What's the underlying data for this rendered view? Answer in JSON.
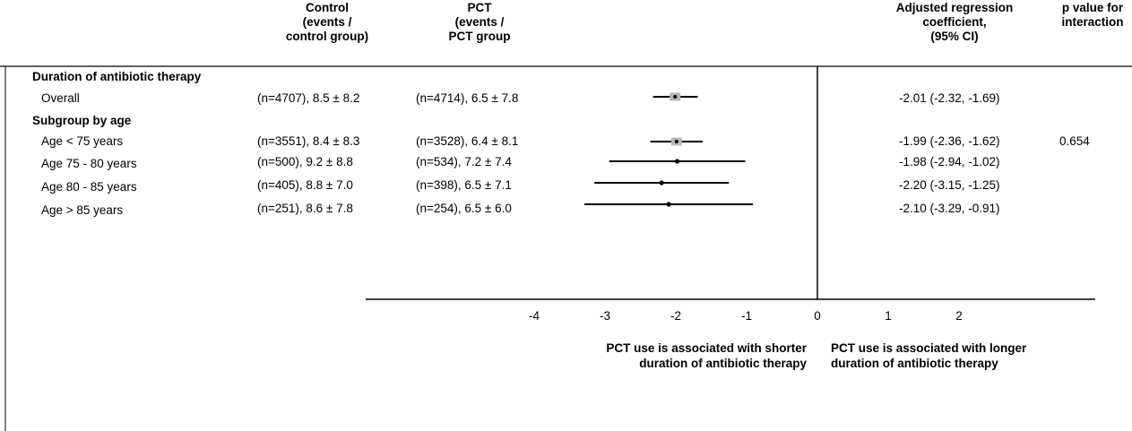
{
  "headers": {
    "control": [
      "Control",
      "(events /",
      "control group)"
    ],
    "pct": [
      "PCT",
      "(events /",
      "PCT group"
    ],
    "coef": [
      "Adjusted regression",
      "coefficient,",
      "(95% CI)"
    ],
    "pvalue": [
      "p value for",
      "interaction"
    ]
  },
  "sections": [
    "Duration of antibiotic therapy",
    "Subgroup by age"
  ],
  "rows": [
    {
      "label": "Overall",
      "control": "(n=4707), 8.5 ± 8.2",
      "pct": "(n=4714), 6.5 ± 7.8",
      "ci_text": "-2.01 (-2.32, -1.69)",
      "p": ""
    },
    {
      "label": "Age < 75 years",
      "control": "(n=3551), 8.4 ± 8.3",
      "pct": "(n=3528), 6.4 ± 8.1",
      "ci_text": "-1.99 (-2.36, -1.62)",
      "p": "0.654"
    },
    {
      "label": "Age 75 - 80 years",
      "control": "(n=500), 9.2 ± 8.8",
      "pct": "(n=534), 7.2 ± 7.4",
      "ci_text": "-1.98 (-2.94, -1.02)",
      "p": ""
    },
    {
      "label": "Age 80 - 85 years",
      "control": "(n=405), 8.8 ± 7.0",
      "pct": "(n=398), 6.5 ± 7.1",
      "ci_text": "-2.20 (-3.15, -1.25)",
      "p": ""
    },
    {
      "label": "Age > 85 years",
      "control": "(n=251), 8.6 ± 7.8",
      "pct": "(n=254),  6.5 ± 6.0",
      "ci_text": "-2.10 (-3.29, -0.91)",
      "p": ""
    }
  ],
  "notes": {
    "left": [
      "PCT use is associated with shorter",
      "duration of antibiotic therapy"
    ],
    "right": [
      "PCT use is associated with longer",
      "duration of antibiotic therapy"
    ]
  },
  "chart_data": {
    "type": "forest",
    "xlim": [
      -4,
      2
    ],
    "ticks": [
      -4,
      -3,
      -2,
      -1,
      0,
      1,
      2
    ],
    "reference_line": 0,
    "series": [
      {
        "label": "Overall",
        "estimate": -2.01,
        "lower": -2.32,
        "upper": -1.69,
        "marker": "box"
      },
      {
        "label": "Age < 75 years",
        "estimate": -1.99,
        "lower": -2.36,
        "upper": -1.62,
        "marker": "box"
      },
      {
        "label": "Age 75 - 80 years",
        "estimate": -1.98,
        "lower": -2.94,
        "upper": -1.02,
        "marker": "dot"
      },
      {
        "label": "Age 80 - 85 years",
        "estimate": -2.2,
        "lower": -3.15,
        "upper": -1.25,
        "marker": "dot"
      },
      {
        "label": "Age > 85 years",
        "estimate": -2.1,
        "lower": -3.29,
        "upper": -0.91,
        "marker": "dot"
      }
    ]
  }
}
